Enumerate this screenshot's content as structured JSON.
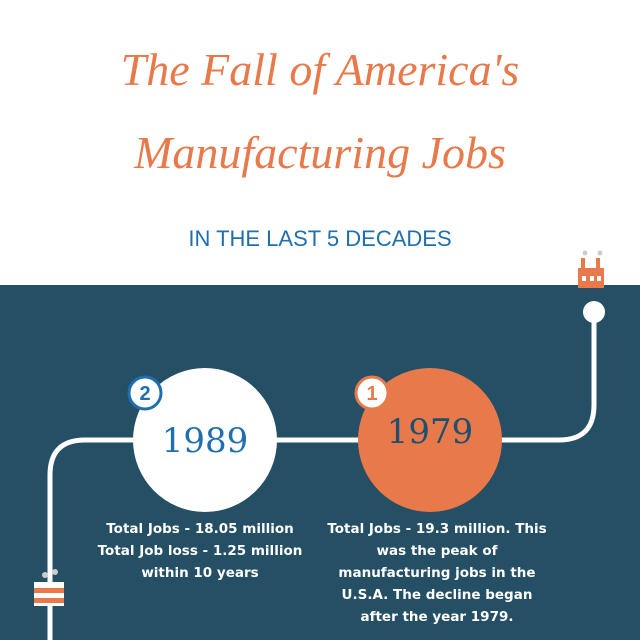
{
  "header": {
    "title_lines": [
      "The Fall of America's",
      "Manufacturing Jobs"
    ],
    "subtitle": "IN THE LAST 5 DECADES"
  },
  "milestones": [
    {
      "number": "2",
      "year": "1989",
      "description_lines": [
        "Total Jobs - 18.05 million",
        "Total Job loss - 1.25 million",
        "within 10 years"
      ]
    },
    {
      "number": "1",
      "year": "1979",
      "description_lines": [
        "Total Jobs - 19.3 million. This",
        "was the peak of",
        "manufacturing jobs in the",
        "U.S.A. The decline began",
        "after the year 1979."
      ]
    }
  ]
}
